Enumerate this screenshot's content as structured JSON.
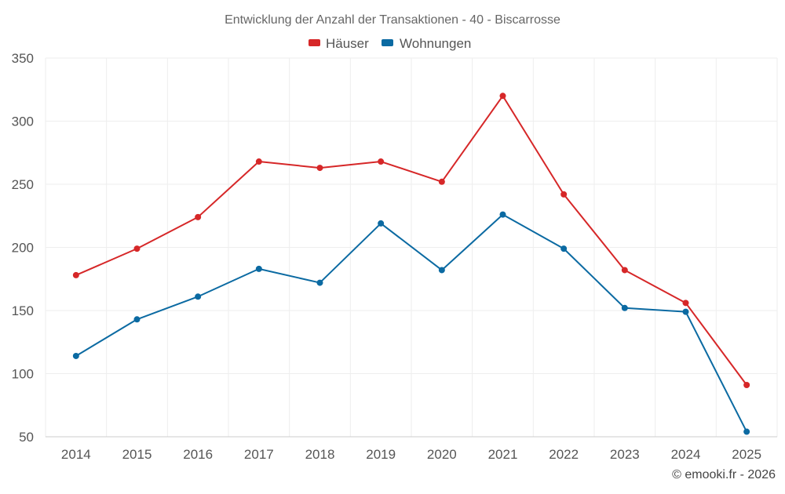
{
  "chart_data": {
    "type": "line",
    "title": "Entwicklung der Anzahl der Transaktionen - 40 - Biscarrosse",
    "categories": [
      "2014",
      "2015",
      "2016",
      "2017",
      "2018",
      "2019",
      "2020",
      "2021",
      "2022",
      "2023",
      "2024",
      "2025"
    ],
    "series": [
      {
        "name": "Häuser",
        "color": "#d62728",
        "values": [
          178,
          199,
          224,
          268,
          263,
          268,
          252,
          320,
          242,
          182,
          156,
          91
        ]
      },
      {
        "name": "Wohnungen",
        "color": "#0b6aa2",
        "values": [
          114,
          143,
          161,
          183,
          172,
          219,
          182,
          226,
          199,
          152,
          149,
          54
        ]
      }
    ],
    "ylim": [
      50,
      350
    ],
    "yticks": [
      50,
      100,
      150,
      200,
      250,
      300,
      350
    ],
    "xlabel": "",
    "ylabel": "",
    "grid": true,
    "legend": "top-center"
  },
  "credit": "© emooki.fr - 2026"
}
